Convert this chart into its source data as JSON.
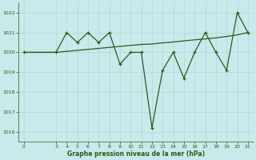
{
  "x_jagged": [
    0,
    3,
    4,
    5,
    6,
    7,
    8,
    9,
    10,
    11,
    12,
    13,
    14,
    15,
    16,
    17,
    18,
    19,
    20,
    21
  ],
  "y_jagged": [
    1020.0,
    1020.0,
    1021.0,
    1020.5,
    1021.0,
    1020.5,
    1021.0,
    1019.4,
    1020.0,
    1020.0,
    1016.2,
    1019.1,
    1020.0,
    1018.7,
    1020.0,
    1021.0,
    1020.0,
    1019.1,
    1022.0,
    1021.0
  ],
  "x_smooth": [
    0,
    3,
    4,
    5,
    6,
    7,
    8,
    9,
    10,
    11,
    12,
    13,
    14,
    15,
    16,
    17,
    18,
    19,
    20,
    21
  ],
  "y_smooth": [
    1020.0,
    1020.0,
    1020.05,
    1020.1,
    1020.15,
    1020.2,
    1020.25,
    1020.3,
    1020.35,
    1020.4,
    1020.42,
    1020.48,
    1020.52,
    1020.58,
    1020.63,
    1020.68,
    1020.73,
    1020.8,
    1020.88,
    1021.0
  ],
  "line_color": "#2d5a1b",
  "bg_color": "#c8eaea",
  "grid_color": "#b0d8d8",
  "ylim": [
    1015.5,
    1022.5
  ],
  "yticks": [
    1016,
    1017,
    1018,
    1019,
    1020,
    1021,
    1022
  ],
  "xticks": [
    0,
    3,
    4,
    5,
    6,
    7,
    8,
    9,
    10,
    11,
    12,
    13,
    14,
    15,
    16,
    17,
    18,
    19,
    20,
    21
  ],
  "xlabel": "Graphe pression niveau de la mer (hPa)",
  "xlim": [
    -0.5,
    21.5
  ]
}
